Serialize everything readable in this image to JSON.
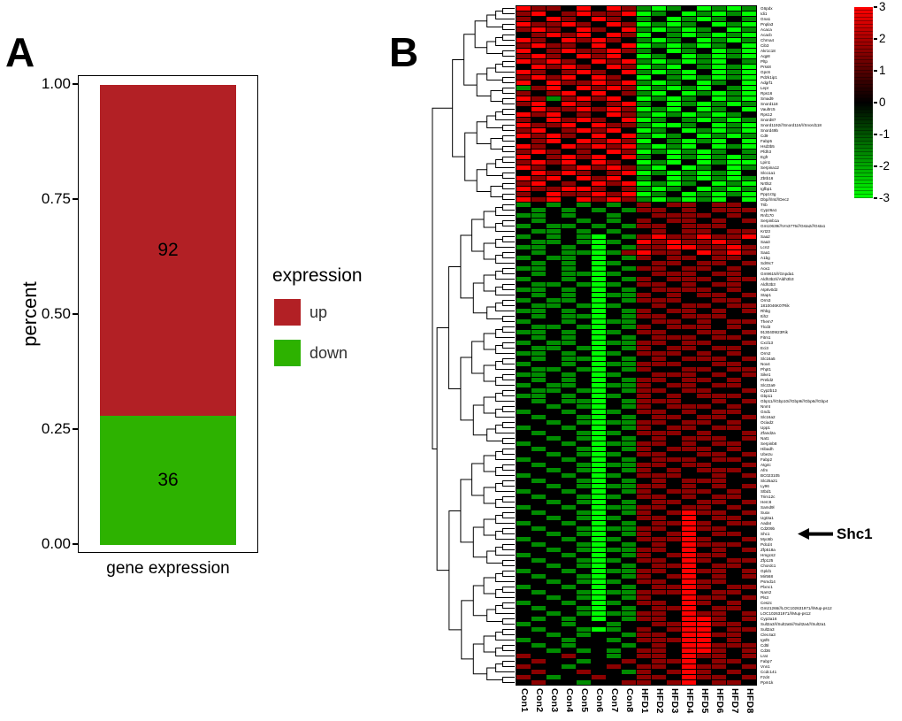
{
  "figure": {
    "panels": {
      "a": "A",
      "b": "B"
    }
  },
  "chart_data": [
    {
      "type": "bar",
      "stacked": true,
      "title": "",
      "xlabel": "gene expression",
      "ylabel": "percent",
      "ylim": [
        0,
        1
      ],
      "yticks": [
        "1.00",
        "0.75",
        "0.50",
        "0.25",
        "0.00"
      ],
      "categories": [
        "gene expression"
      ],
      "legend_title": "expression",
      "legend_position": "right",
      "series": [
        {
          "name": "up",
          "count": 92,
          "fraction": 0.719,
          "color": "#b22025"
        },
        {
          "name": "down",
          "count": 36,
          "fraction": 0.281,
          "color": "#2db200"
        }
      ]
    },
    {
      "type": "heatmap",
      "columns": [
        "Con1",
        "Con2",
        "Con3",
        "Con4",
        "Con5",
        "Con6",
        "Con7",
        "Con8",
        "HFD1",
        "HFD2",
        "HFD3",
        "HFD4",
        "HFD5",
        "HFD6",
        "HFD7",
        "HFD8"
      ],
      "rows": [
        "G6pdx",
        "Idi1",
        "Gna1",
        "Pnpla3",
        "Acaca",
        "Acacb",
        "Chrna4",
        "Cib3",
        "Akr1c18",
        "Aqp8",
        "Pltp",
        "Prss8",
        "Gpc6",
        "Pdzk1ip1",
        "Adgrf1",
        "Lepr",
        "Rps16",
        "Smad9",
        "Snord118",
        "Vaultrc5",
        "Rps12",
        "Snord87",
        "Snord1192///Snord116///Snord118",
        "Snord49b",
        "Cd9",
        "Fabp5",
        "Hsd3b5",
        "Pfdh3",
        "Egfr",
        "Lpin1",
        "Serpina12",
        "Slco1a1",
        "Zbtb16",
        "Nr0b2",
        "Igfbp1",
        "Ppp1r3g",
        "Dbp///Int///Dec2",
        "Trib",
        "Cyp26a1",
        "Rnf170",
        "Serpinb1a",
        "Gm10639///Vm3775///Gsta2///Gsta1",
        "Krt23",
        "Saa2",
        "Saa3",
        "Lcn2",
        "Saa1",
        "A1bg",
        "Sdr9c7",
        "Aox1",
        "Gm9615///Gnpda1",
        "Aldh3b2///Aldh3b3",
        "Aldh3b3",
        "Atp6v0d2",
        "Stap1",
        "Orm3",
        "1810046K07Rik",
        "Rhbg",
        "Itih2",
        "Them7",
        "Tlcd3",
        "9130409I23Rik",
        "Fitm1",
        "Cxcl13",
        "Eci3",
        "Orm2",
        "Slc16a5",
        "Nox4",
        "Phpt1",
        "Sike1",
        "Prelid2",
        "Slc22a9",
        "Cyp2b13",
        "Gbp11",
        "Gbp11///Gbp10///Gbp9///Gbp6///Gbp4",
        "Nnmt",
        "Gnd1",
        "Slc16a2",
        "Ociad2",
        "Upp1",
        "Zfand2a",
        "Nat1",
        "Serpinb8",
        "Hibadh",
        "Ube2u",
        "Fabp2",
        "Atg4c",
        "Afm",
        "BC023105",
        "Slc25a21",
        "Ly96",
        "Stbd1",
        "Trim12c",
        "Herc6",
        "Samd9l",
        "Suox",
        "Ugt3a1",
        "Aadat",
        "Cd209b",
        "Shc1",
        "Myo5b",
        "Pdcd4",
        "Zfp518a",
        "Hmgcs2",
        "Zfp125",
        "Chordc1",
        "Gpld1",
        "Mir568",
        "Psmd14",
        "Plxnc1",
        "Nars2",
        "Pls3",
        "Ces2c",
        "Gm21266///LOC102631971///Mup-ps12",
        "LOC102631971///Mup-ps12",
        "Cyp3a16",
        "Sult2a3///Sult2a5///Sult2a4///Sult2a1",
        "Sult2a3",
        "Clec4a3",
        "Igsf6",
        "Cd5l",
        "Cd36",
        "Lrat",
        "Fabp7",
        "Vnn1",
        "Ccdc141",
        "Fzd4",
        "Ppm1k"
      ],
      "values": [
        "RrrkRkRrgGgkGgGg",
        "rRkrRrrRGgkGgGgG",
        "rkRrkRrkgkGgGgkg",
        "RrrRrkRrGgGgkGgG",
        "rRrkRrkRgGgGgkGg",
        "krRrRkRrGkgGgGgG",
        "RrkRrRrkgGgkGgGg",
        "rRrrkRkRGgGgGgkG",
        "RkrRrrRrgkGgkGgG",
        "rRrkRrRkGgkGgGgG",
        "RrRrkRrRgGgGgGkg",
        "kRrRrkRrGgGkgGgG",
        "RrkrRrkRgGgGkGgG",
        "rRrRkRrkGkgGgGgG",
        "RkRrrRrRgGgkGgkG",
        "grRkRrRrGgGgGkgG",
        "rkrRkRkrgGkGgGgG",
        "RrgrRrRkGgGgkGgG",
        "rRkRrkrRgkGgGgGg",
        "kRrrRrRrGgGkGgkG",
        "RrRkrkRrgGgGgGgk",
        "rkRrRrkRGgkgGgGg",
        "RrrRkRrrgGGgkGgG",
        "rRkrRrRkGgkGgGgG",
        "RrRrkRkRgGgkGgGg",
        "krRkRrRrGkgGgGkG",
        "RrkRrRrRgGgGkGgG",
        "rRrkrkRrGgGgGgkg",
        "RkrRrRkRgkGgGgGg",
        "rRrRkRrkGgGkGgGG",
        "RrkrRrRrgGkGgkGg",
        "kRrRrkrRGgGgGgGk",
        "RrRkRrRkgkGgGgGg",
        "rRkrkRrRGgGgkGgG",
        "RrrRRrkrgGgkGgGg",
        "rkRrrRrRGgkGgGgG",
        "RrRkRrRrgGgGgGkG",
        "gkgkgkgkrkrrkrrk",
        "kgkgkgkgrrkrkrrr",
        "ggkgkkgkkrrrrkrk",
        "kgkkgkgkrkrrkrkr",
        "gkggkgkgrrkrrrkk",
        "kggkgkgkkrkrrkrr",
        "gkgkgGkgrRrrRrrR",
        "kggkgGgkRrRrrRrk",
        "ggkgkGkgrrRRrrRr",
        "kgkggGgrRrrkRrRr",
        "gkggkGkgrkrrkrrk",
        "kgkgkGgkkrrkrrkr",
        "ggkgkGkgrrkrrkrk",
        "kgkggGgkkrrrkrrk",
        "gkkgkGkgrkrrrkrr",
        "kggkgGgkrrkrkrrk",
        "ggkgkGkgkrrrrkrk",
        "kgkgkGggrkrkrrkr",
        "gkggkGkgrrrkkrrk",
        "kggkgGgkkrkrrkrr",
        "ggkgkGkgrkrrkrkr",
        "kgkggGkgrrkrrrkk",
        "gkkgkGggkrrkrkrr",
        "kggkgGkgrkrrrkrk",
        "ggkgkGgkrrkkrrkr",
        "kgkgkGkgkrrrkrrk",
        "gkggkGggrrkrrkkr",
        "kggkgGkgrkrrkrrk",
        "ggkgkGgkrrrkrkrk",
        "kgkggGkgkrkrrrkr",
        "gkkgkGggrrrkkrrk",
        "kggkgGkgrkkrrkrr",
        "ggkgkGgkkrrrkrkr",
        "kgkgkGkgrrkrrkrk",
        "gkggkGggrkrrkrrk",
        "kggkgGkgrrkrrkkr",
        "ggkgkGgkrkrkrrrk",
        "kgkggGkgrrrkkrkr",
        "kkgkgGkgrkrrrkrk",
        "gkkgkGgkrrkrkrrk",
        "kgkkgGkgkrrkrrkr",
        "kkgkgGggrrkrrkrk",
        "gkkgkGkgrkrrkrrk",
        "kgkkgGgkrrrkrkkr",
        "kkgkgGkgkrkrrrkr",
        "gkkgkGggrrkrkrrk",
        "kgkkgGkgrkrrrkrk",
        "kkgkgGgkrrkkrrkr",
        "gkkgkGkgkrrrkrrk",
        "kgkkgGggrrkrrkkr",
        "kkgkgGkgrkrkrrrk",
        "gkkgkGgkrrrkkrkr",
        "kgkkgGkgkrkrrrkk",
        "kkgkgGggrrkrkrkr",
        "gkkgkGkgrkrrrkrk",
        "kgkkgGgkrrkrkrrk",
        "kkgkgGkgkrrkrrkr",
        "gkkgkGggrrkrrkrk",
        "kgkkgGkgrkrRrrkr",
        "kkgkgGgkrrkRkrrk",
        "gkkgkGkgkrrRrkrr",
        "kgkkgGggrrkRrrkk",
        "kkgkgGkgrkrRkrrk",
        "gkkgkGgkrrrRrkkr",
        "kgkkgGkgkrkRrrrk",
        "kkgkgGggrrkRkrkr",
        "gkkgkGkgrkrRrrkk",
        "kgkkgGgkrrkRrkrr",
        "kkgkgGkgkrrRkrrk",
        "gkkgkGggrrkRrrkr",
        "kgkkgGkgrkrRkrkr",
        "kkgkgGgkrrkRrrkk",
        "gkkgkGkgkrrRrkrr",
        "kgkkgGggrrrRkrrk",
        "kkgkgGkgrkkRrrkr",
        "gkkgkGgkrrkRrkrk",
        "kgkkgGkgkrrRkrrk",
        "kkgkgGggrrkRrrkr",
        "kgkgkGkgrrkRRrkr",
        "gkkgkkgkkrrRRrrk",
        "kgkkgGgkrkrRRkrr",
        "kkgkgkkgrrkRRrrk",
        "gkkgkkgkrrrRRkrk",
        "kgkgkkkgkrkRRrrr",
        "kkgkgkgkrrkRRrkr",
        "rkkrkkgkrrkRrrkr",
        "krkkgkkrkrrRkrrk",
        "rkkgkkrkrrkRrrkr",
        "krkkrkkgrkrRrkrk",
        "rkgkkrkkrrkRrrkr",
        "krkkgkkrrkrRkrrk"
      ],
      "value_scale": {
        "R": 3,
        "r": 1.5,
        "k": 0,
        "g": -1.5,
        "G": -3
      },
      "value_colors": {
        "R": "#ff0000",
        "r": "#8c0000",
        "k": "#000000",
        "g": "#008c00",
        "G": "#00ff00"
      },
      "colorbar": {
        "ticks": [
          "3",
          "2",
          "1",
          "0",
          "-1",
          "-2",
          "-3"
        ],
        "top_color": "#ff0000",
        "mid_color": "#000000",
        "bottom_color": "#00ff00"
      },
      "annotation": {
        "text": "Shc1",
        "row": "Shc1"
      }
    }
  ]
}
